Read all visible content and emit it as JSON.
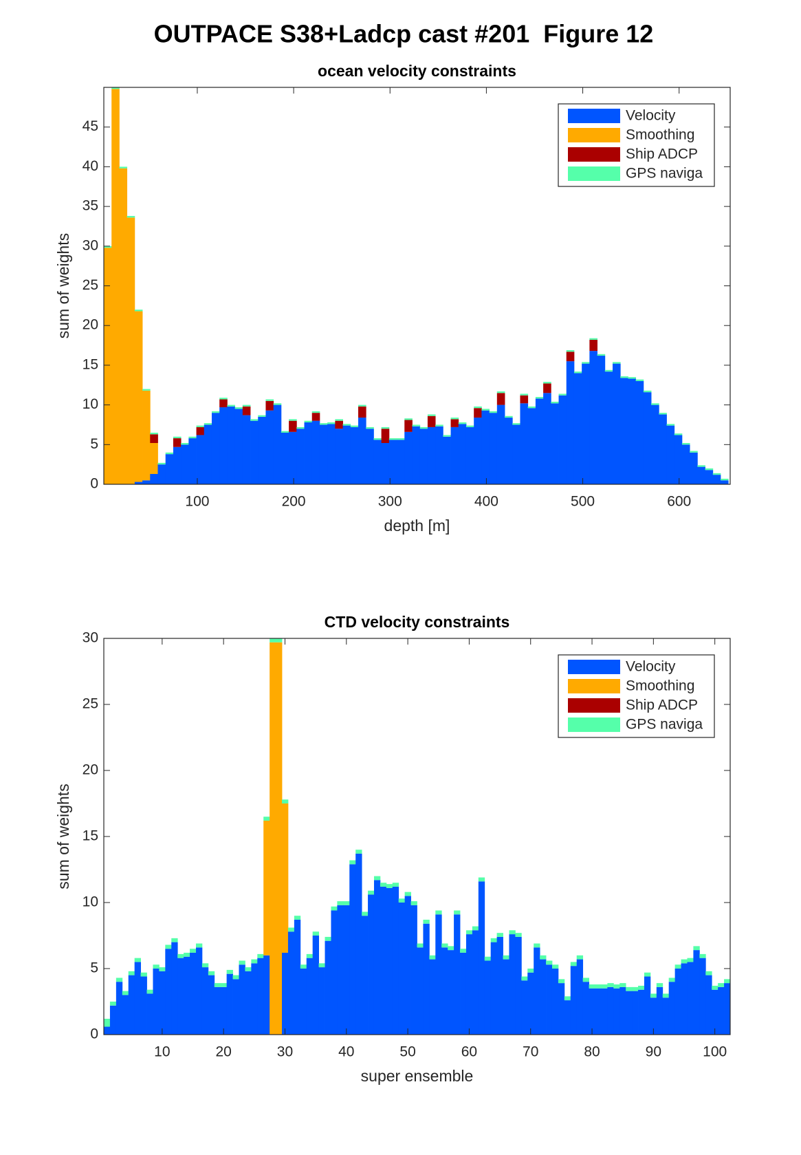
{
  "title": "OUTPACE S38+Ladcp cast #201  Figure 12",
  "chart_data": [
    {
      "type": "stacked_bar",
      "title": "ocean velocity constraints",
      "xlabel": "depth [m]",
      "ylabel": "sum of weights",
      "legend": "northeast",
      "grid": false,
      "xlim": [
        3,
        653
      ],
      "ylim": [
        0,
        50
      ],
      "xticks": [
        100,
        200,
        300,
        400,
        500,
        600
      ],
      "yticks": [
        0,
        5,
        10,
        15,
        20,
        25,
        30,
        35,
        40,
        45
      ],
      "x": [
        7,
        15,
        23,
        31,
        39,
        47,
        55,
        63,
        71,
        79,
        87,
        95,
        103,
        111,
        119,
        127,
        135,
        143,
        151,
        159,
        167,
        175,
        183,
        191,
        199,
        207,
        215,
        223,
        231,
        239,
        247,
        255,
        263,
        271,
        279,
        287,
        295,
        303,
        311,
        319,
        327,
        335,
        343,
        351,
        359,
        367,
        375,
        383,
        391,
        399,
        407,
        415,
        423,
        431,
        439,
        447,
        455,
        463,
        471,
        479,
        487,
        495,
        503,
        511,
        519,
        527,
        535,
        543,
        551,
        559,
        567,
        575,
        583,
        591,
        599,
        607,
        615,
        623,
        631,
        639,
        647
      ],
      "series": [
        {
          "name": "Velocity",
          "color": "#0055ff",
          "values": [
            0,
            0,
            0,
            0,
            0.3,
            0.5,
            1.3,
            2.5,
            3.8,
            4.7,
            5.0,
            5.8,
            6.2,
            7.5,
            9.0,
            9.7,
            9.8,
            9.5,
            8.7,
            8.0,
            8.5,
            9.3,
            10.0,
            6.5,
            6.6,
            7.0,
            7.8,
            8.0,
            7.5,
            7.6,
            7.0,
            7.4,
            7.2,
            8.4,
            7.0,
            5.6,
            5.2,
            5.6,
            5.6,
            6.6,
            7.3,
            7.0,
            7.2,
            7.3,
            6.0,
            7.2,
            7.6,
            7.2,
            8.4,
            9.3,
            9.0,
            10.0,
            8.4,
            7.5,
            10.2,
            9.6,
            10.8,
            11.5,
            10.2,
            11.2,
            15.5,
            14.0,
            15.2,
            16.8,
            16.2,
            14.2,
            15.2,
            13.4,
            13.3,
            13.0,
            11.6,
            10.0,
            8.8,
            7.4,
            6.2,
            5.0,
            4.0,
            2.2,
            1.8,
            1.2,
            0.5
          ]
        },
        {
          "name": "Smoothing",
          "color": "#ffaa00",
          "values": [
            29.8,
            49.8,
            39.8,
            33.6,
            21.5,
            11.3,
            3.9,
            0,
            0,
            0,
            0,
            0,
            0,
            0,
            0,
            0,
            0,
            0,
            0,
            0,
            0,
            0,
            0,
            0,
            0,
            0,
            0,
            0,
            0,
            0,
            0,
            0,
            0,
            0,
            0,
            0,
            0,
            0,
            0,
            0,
            0,
            0,
            0,
            0,
            0,
            0,
            0,
            0,
            0,
            0,
            0,
            0,
            0,
            0,
            0,
            0,
            0,
            0,
            0,
            0,
            0,
            0,
            0,
            0,
            0,
            0,
            0,
            0,
            0,
            0,
            0,
            0,
            0,
            0,
            0,
            0,
            0,
            0,
            0,
            0,
            0
          ]
        },
        {
          "name": "Ship ADCP",
          "color": "#aa0000",
          "values": [
            0,
            0,
            0,
            0,
            0,
            0,
            1.1,
            0,
            0,
            1.1,
            0,
            0,
            1.0,
            0,
            0,
            1.0,
            0,
            0,
            1.1,
            0,
            0,
            1.2,
            0,
            0,
            1.4,
            0,
            0,
            1.0,
            0,
            0,
            1.0,
            0,
            0,
            1.4,
            0,
            0,
            1.8,
            0,
            0,
            1.5,
            0,
            0,
            1.4,
            0,
            0,
            1.0,
            0,
            0,
            1.2,
            0,
            0,
            1.5,
            0,
            0,
            1.0,
            0,
            0,
            1.2,
            0,
            0,
            1.2,
            0,
            0,
            1.4,
            0,
            0,
            0,
            0,
            0,
            0,
            0,
            0,
            0,
            0,
            0,
            0,
            0,
            0,
            0,
            0,
            0
          ]
        },
        {
          "name": "GPS naviga",
          "color": "#55ffaa",
          "values": [
            0.2,
            0.2,
            0.2,
            0.2,
            0.2,
            0.2,
            0.2,
            0.2,
            0.2,
            0.2,
            0.2,
            0.2,
            0.2,
            0.2,
            0.2,
            0.2,
            0.2,
            0.2,
            0.2,
            0.2,
            0.2,
            0.2,
            0.2,
            0.2,
            0.2,
            0.2,
            0.2,
            0.2,
            0.2,
            0.2,
            0.2,
            0.2,
            0.2,
            0.2,
            0.2,
            0.2,
            0.2,
            0.2,
            0.2,
            0.2,
            0.2,
            0.2,
            0.2,
            0.2,
            0.2,
            0.2,
            0.2,
            0.2,
            0.2,
            0.2,
            0.2,
            0.2,
            0.2,
            0.2,
            0.2,
            0.2,
            0.2,
            0.2,
            0.2,
            0.2,
            0.2,
            0.2,
            0.2,
            0.2,
            0.2,
            0.2,
            0.2,
            0.2,
            0.2,
            0.2,
            0.2,
            0.2,
            0.2,
            0.2,
            0.2,
            0.2,
            0.2,
            0.2,
            0.2,
            0.2,
            0.2
          ]
        }
      ]
    },
    {
      "type": "stacked_bar",
      "title": "CTD velocity constraints",
      "xlabel": "super ensemble",
      "ylabel": "sum of weights",
      "legend": "northeast",
      "grid": false,
      "xlim": [
        0.5,
        102.5
      ],
      "ylim": [
        0,
        30
      ],
      "xticks": [
        10,
        20,
        30,
        40,
        50,
        60,
        70,
        80,
        90,
        100
      ],
      "yticks": [
        0,
        5,
        10,
        15,
        20,
        25,
        30
      ],
      "x": [
        1,
        2,
        3,
        4,
        5,
        6,
        7,
        8,
        9,
        10,
        11,
        12,
        13,
        14,
        15,
        16,
        17,
        18,
        19,
        20,
        21,
        22,
        23,
        24,
        25,
        26,
        27,
        28,
        29,
        30,
        31,
        32,
        33,
        34,
        35,
        36,
        37,
        38,
        39,
        40,
        41,
        42,
        43,
        44,
        45,
        46,
        47,
        48,
        49,
        50,
        51,
        52,
        53,
        54,
        55,
        56,
        57,
        58,
        59,
        60,
        61,
        62,
        63,
        64,
        65,
        66,
        67,
        68,
        69,
        70,
        71,
        72,
        73,
        74,
        75,
        76,
        77,
        78,
        79,
        80,
        81,
        82,
        83,
        84,
        85,
        86,
        87,
        88,
        89,
        90,
        91,
        92,
        93,
        94,
        95,
        96,
        97,
        98,
        99,
        100,
        101,
        102
      ],
      "series": [
        {
          "name": "Velocity",
          "color": "#0055ff",
          "values": [
            0.6,
            2.2,
            4.0,
            3.0,
            4.5,
            5.5,
            4.4,
            3.1,
            5.0,
            4.8,
            6.5,
            7.0,
            5.8,
            5.9,
            6.2,
            6.6,
            5.1,
            4.5,
            3.6,
            3.6,
            4.6,
            4.2,
            5.3,
            4.8,
            5.4,
            5.8,
            6.0,
            0,
            0,
            6.2,
            7.8,
            8.7,
            5.0,
            5.8,
            7.5,
            5.1,
            7.1,
            9.4,
            9.8,
            9.8,
            12.9,
            13.7,
            9.0,
            10.6,
            11.7,
            11.2,
            11.1,
            11.2,
            10.0,
            10.5,
            9.8,
            6.6,
            8.4,
            5.7,
            9.1,
            6.6,
            6.4,
            9.1,
            6.2,
            7.6,
            7.9,
            11.6,
            5.6,
            7.0,
            7.4,
            5.7,
            7.6,
            7.4,
            4.1,
            4.7,
            6.6,
            5.7,
            5.3,
            5.0,
            3.9,
            2.6,
            5.2,
            5.7,
            4.0,
            3.5,
            3.5,
            3.5,
            3.6,
            3.5,
            3.6,
            3.3,
            3.3,
            3.4,
            4.4,
            2.8,
            3.6,
            2.8,
            4.0,
            5.0,
            5.4,
            5.5,
            6.4,
            5.8,
            4.5,
            3.4,
            3.6,
            3.9
          ]
        },
        {
          "name": "Smoothing",
          "color": "#ffaa00",
          "values": [
            0,
            0,
            0,
            0,
            0,
            0,
            0,
            0,
            0,
            0,
            0,
            0,
            0,
            0,
            0,
            0,
            0,
            0,
            0,
            0,
            0,
            0,
            0,
            0,
            0,
            0,
            10.2,
            29.7,
            29.7,
            11.3,
            0,
            0,
            0,
            0,
            0,
            0,
            0,
            0,
            0,
            0,
            0,
            0,
            0,
            0,
            0,
            0,
            0,
            0,
            0,
            0,
            0,
            0,
            0,
            0,
            0,
            0,
            0,
            0,
            0,
            0,
            0,
            0,
            0,
            0,
            0,
            0,
            0,
            0,
            0,
            0,
            0,
            0,
            0,
            0,
            0,
            0,
            0,
            0,
            0,
            0,
            0,
            0,
            0,
            0,
            0,
            0,
            0,
            0,
            0,
            0,
            0,
            0,
            0,
            0,
            0,
            0,
            0,
            0,
            0,
            0,
            0,
            0
          ]
        },
        {
          "name": "Ship ADCP",
          "color": "#aa0000",
          "values": [
            0,
            0,
            0,
            0,
            0,
            0,
            0,
            0,
            0,
            0,
            0,
            0,
            0,
            0,
            0,
            0,
            0,
            0,
            0,
            0,
            0,
            0,
            0,
            0,
            0,
            0,
            0,
            0,
            0,
            0,
            0,
            0,
            0,
            0,
            0,
            0,
            0,
            0,
            0,
            0,
            0,
            0,
            0,
            0,
            0,
            0,
            0,
            0,
            0,
            0,
            0,
            0,
            0,
            0,
            0,
            0,
            0,
            0,
            0,
            0,
            0,
            0,
            0,
            0,
            0,
            0,
            0,
            0,
            0,
            0,
            0,
            0,
            0,
            0,
            0,
            0,
            0,
            0,
            0,
            0,
            0,
            0,
            0,
            0,
            0,
            0,
            0,
            0,
            0,
            0,
            0,
            0,
            0,
            0,
            0,
            0,
            0,
            0,
            0,
            0,
            0,
            0
          ]
        },
        {
          "name": "GPS naviga",
          "color": "#55ffaa",
          "values": [
            0.6,
            0.3,
            0.3,
            0.3,
            0.3,
            0.3,
            0.3,
            0.3,
            0.3,
            0.3,
            0.3,
            0.3,
            0.3,
            0.3,
            0.3,
            0.3,
            0.3,
            0.3,
            0.3,
            0.3,
            0.3,
            0.3,
            0.3,
            0.3,
            0.3,
            0.3,
            0.3,
            0.3,
            0.3,
            0.3,
            0.3,
            0.3,
            0.3,
            0.3,
            0.3,
            0.3,
            0.3,
            0.3,
            0.3,
            0.3,
            0.3,
            0.3,
            0.3,
            0.3,
            0.3,
            0.3,
            0.3,
            0.3,
            0.3,
            0.3,
            0.3,
            0.3,
            0.3,
            0.3,
            0.3,
            0.3,
            0.3,
            0.3,
            0.3,
            0.3,
            0.3,
            0.3,
            0.3,
            0.3,
            0.3,
            0.3,
            0.3,
            0.3,
            0.3,
            0.3,
            0.3,
            0.3,
            0.3,
            0.3,
            0.3,
            0.3,
            0.3,
            0.3,
            0.3,
            0.3,
            0.3,
            0.3,
            0.3,
            0.3,
            0.3,
            0.3,
            0.3,
            0.3,
            0.3,
            0.3,
            0.3,
            0.3,
            0.3,
            0.3,
            0.3,
            0.3,
            0.3,
            0.3,
            0.3,
            0.3,
            0.3,
            0.3
          ]
        }
      ]
    }
  ]
}
